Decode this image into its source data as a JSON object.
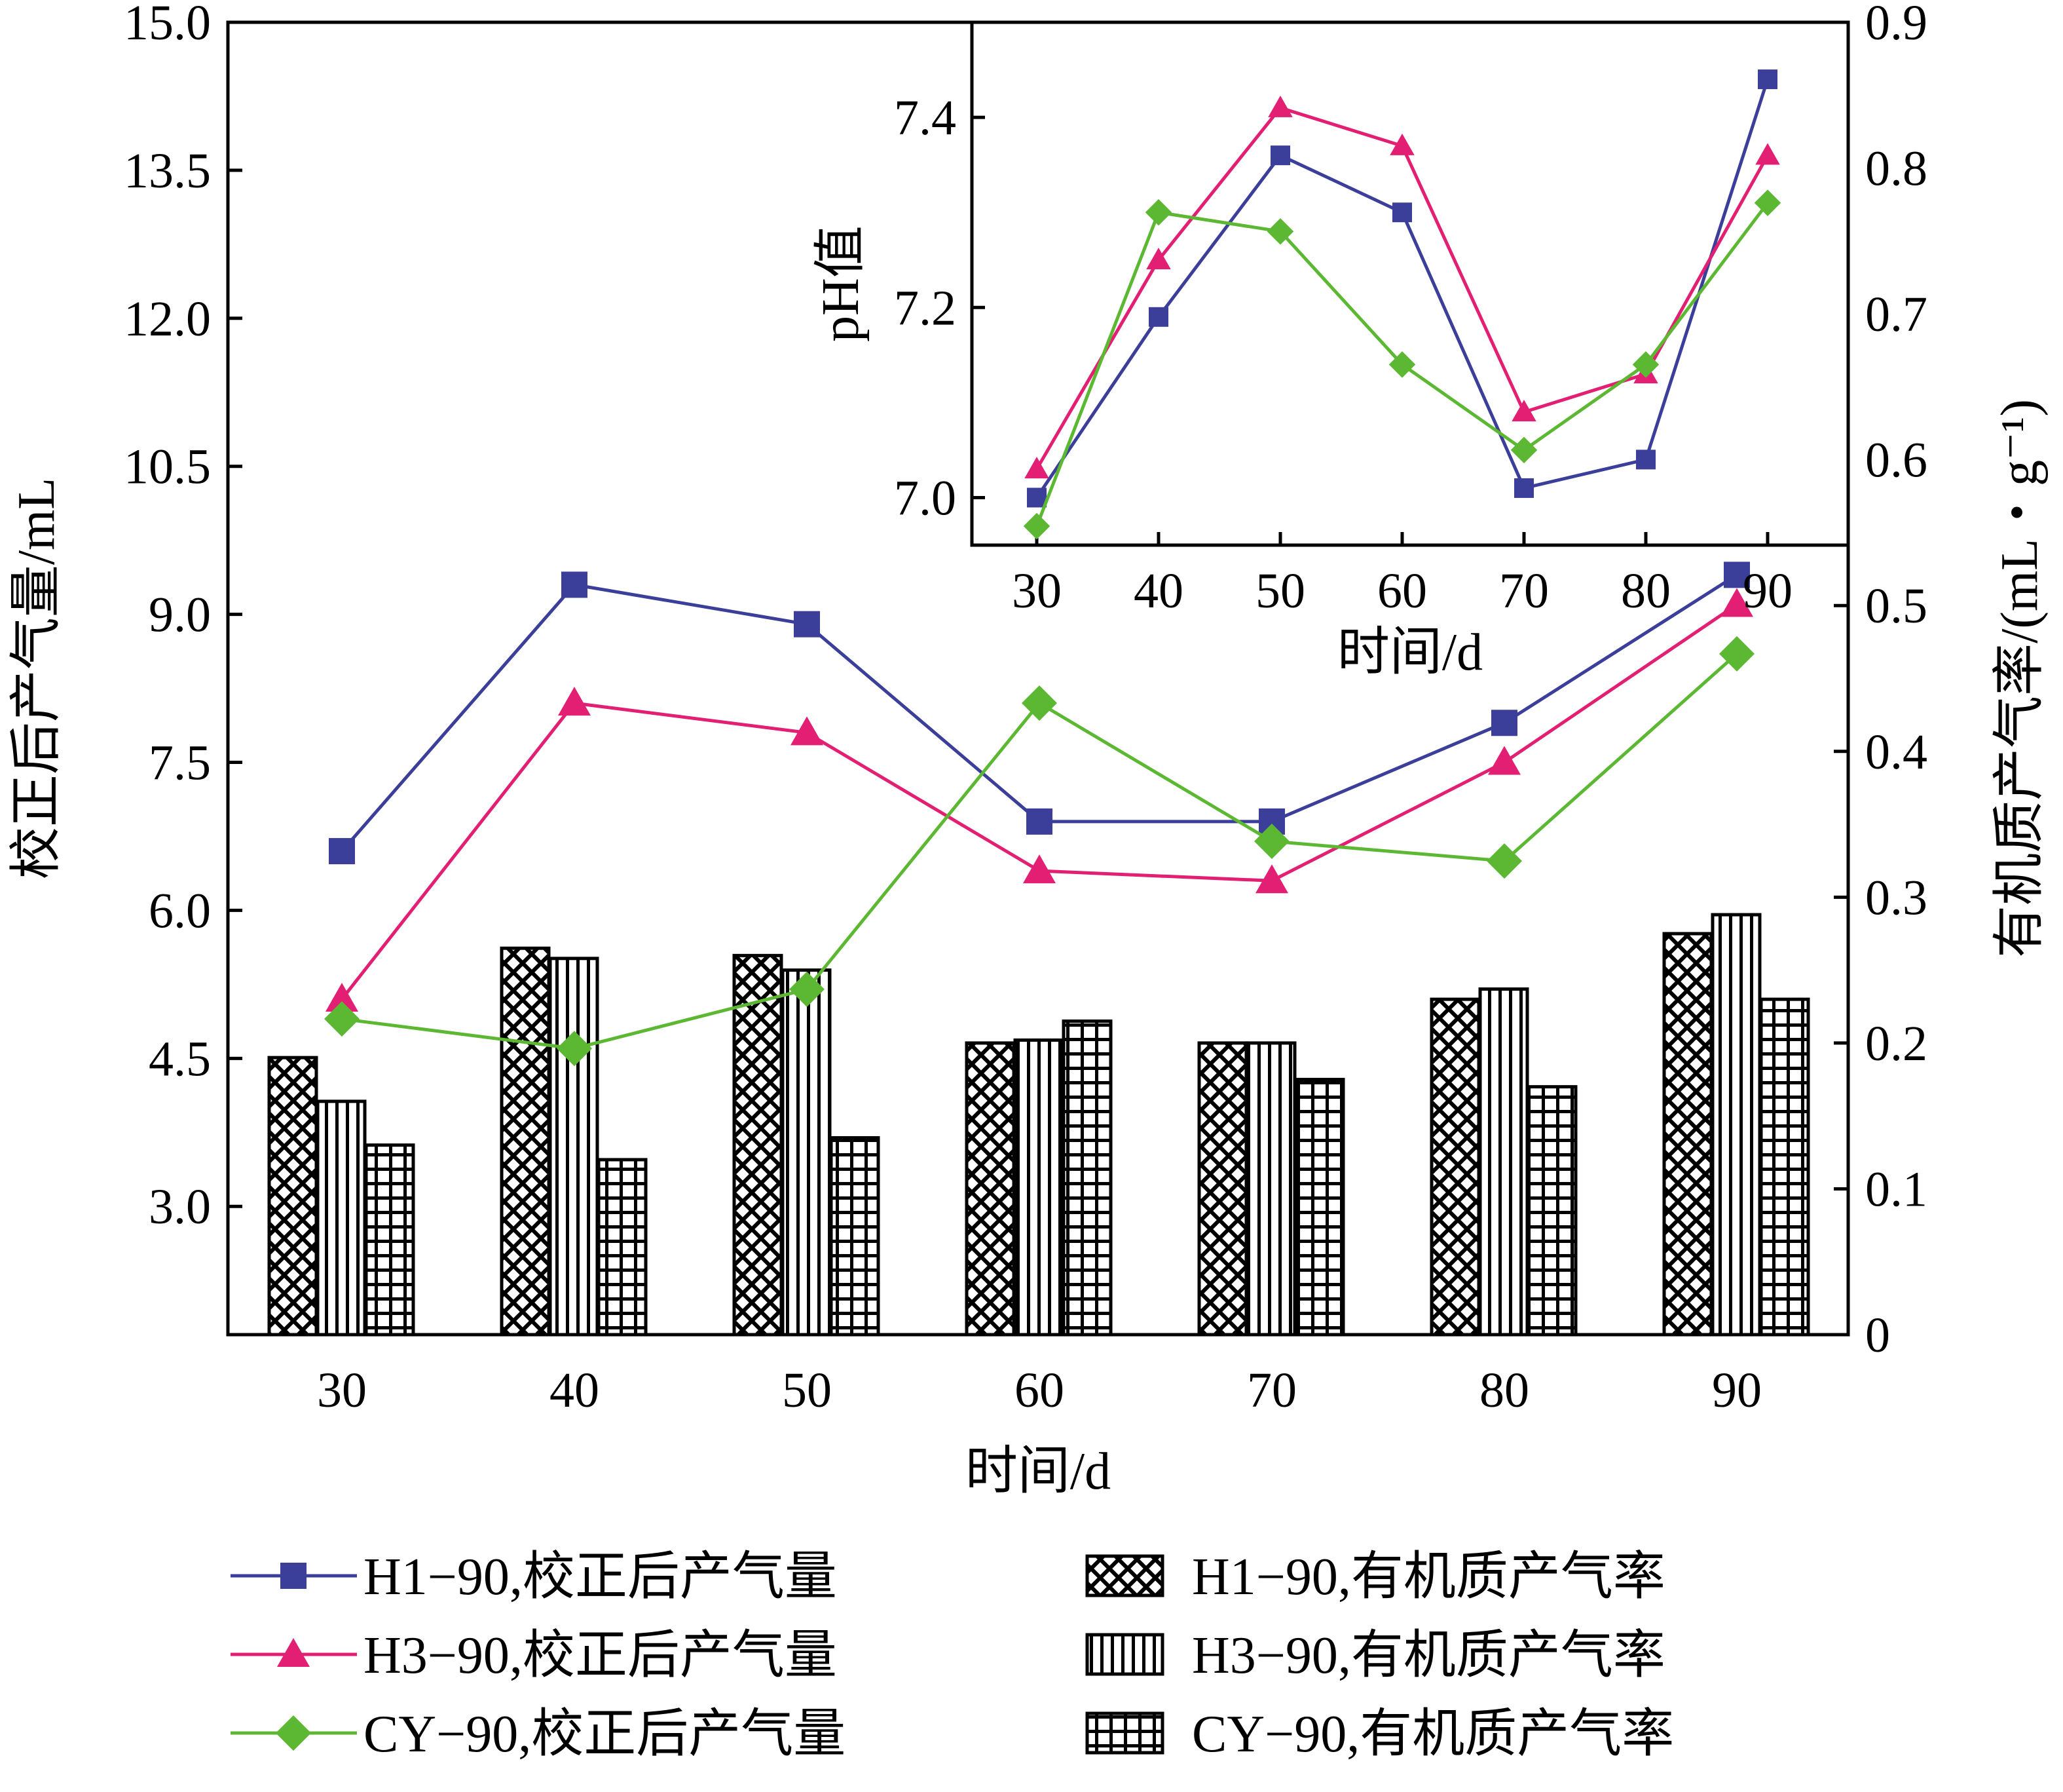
{
  "chart_data": [
    {
      "type": "bar+line",
      "title": "",
      "xlabel": "时间/d",
      "ylabel_left": "校正后产气量/mL",
      "ylabel_right": "有机质产气率/(mL・g⁻¹)",
      "x": [
        30,
        40,
        50,
        60,
        70,
        80,
        90
      ],
      "x_ticks": [
        "30",
        "40",
        "50",
        "60",
        "70",
        "80",
        "90"
      ],
      "ylim_left": [
        1.7,
        15.0
      ],
      "yticks_left": [
        "3.0",
        "4.5",
        "6.0",
        "7.5",
        "9.0",
        "10.5",
        "12.0",
        "13.5",
        "15.0"
      ],
      "ylim_right": [
        0,
        0.9
      ],
      "yticks_right": [
        "0",
        "0.1",
        "0.2",
        "0.3",
        "0.4",
        "0.5",
        "0.6",
        "0.7",
        "0.8",
        "0.9"
      ],
      "line_series": [
        {
          "name": "H1−90,校正后产气量",
          "color": "#3b3f9a",
          "marker": "square",
          "values": [
            6.6,
            9.3,
            8.9,
            6.9,
            6.9,
            7.9,
            9.4
          ]
        },
        {
          "name": "H3−90,校正后产气量",
          "color": "#e21f72",
          "marker": "triangle",
          "values": [
            5.1,
            8.1,
            7.8,
            6.4,
            6.3,
            7.5,
            9.1
          ]
        },
        {
          "name": "CY−90,校正后产气量",
          "color": "#5cb833",
          "marker": "diamond",
          "values": [
            4.9,
            4.6,
            5.2,
            8.1,
            6.7,
            6.5,
            8.6
          ]
        }
      ],
      "bar_series": [
        {
          "name": "H1−90,有机质产气率",
          "pattern": "crosshatch",
          "values": [
            0.19,
            0.265,
            0.26,
            0.2,
            0.2,
            0.23,
            0.275
          ]
        },
        {
          "name": "H3−90,有机质产气率",
          "pattern": "vertical",
          "values": [
            0.16,
            0.258,
            0.25,
            0.202,
            0.2,
            0.237,
            0.288
          ]
        },
        {
          "name": "CY−90,有机质产气率",
          "pattern": "grid",
          "values": [
            0.13,
            0.12,
            0.135,
            0.215,
            0.175,
            0.17,
            0.23
          ]
        }
      ],
      "legend_position": "bottom"
    },
    {
      "type": "line",
      "title": "",
      "xlabel": "时间/d",
      "ylabel": "pH值",
      "x": [
        30,
        40,
        50,
        60,
        70,
        80,
        90
      ],
      "x_ticks": [
        "30",
        "40",
        "50",
        "60",
        "70",
        "80",
        "90"
      ],
      "ylim": [
        6.95,
        7.5
      ],
      "yticks": [
        "7.0",
        "7.2",
        "7.4"
      ],
      "series": [
        {
          "name": "H1−90",
          "color": "#3b3f9a",
          "marker": "square",
          "values": [
            7.0,
            7.19,
            7.36,
            7.3,
            7.01,
            7.04,
            7.44
          ]
        },
        {
          "name": "H3−90",
          "color": "#e21f72",
          "marker": "triangle",
          "values": [
            7.03,
            7.25,
            7.41,
            7.37,
            7.09,
            7.13,
            7.36
          ]
        },
        {
          "name": "CY−90",
          "color": "#5cb833",
          "marker": "diamond",
          "values": [
            6.97,
            7.3,
            7.28,
            7.14,
            7.05,
            7.14,
            7.31
          ]
        }
      ],
      "legend_position": "none"
    }
  ]
}
